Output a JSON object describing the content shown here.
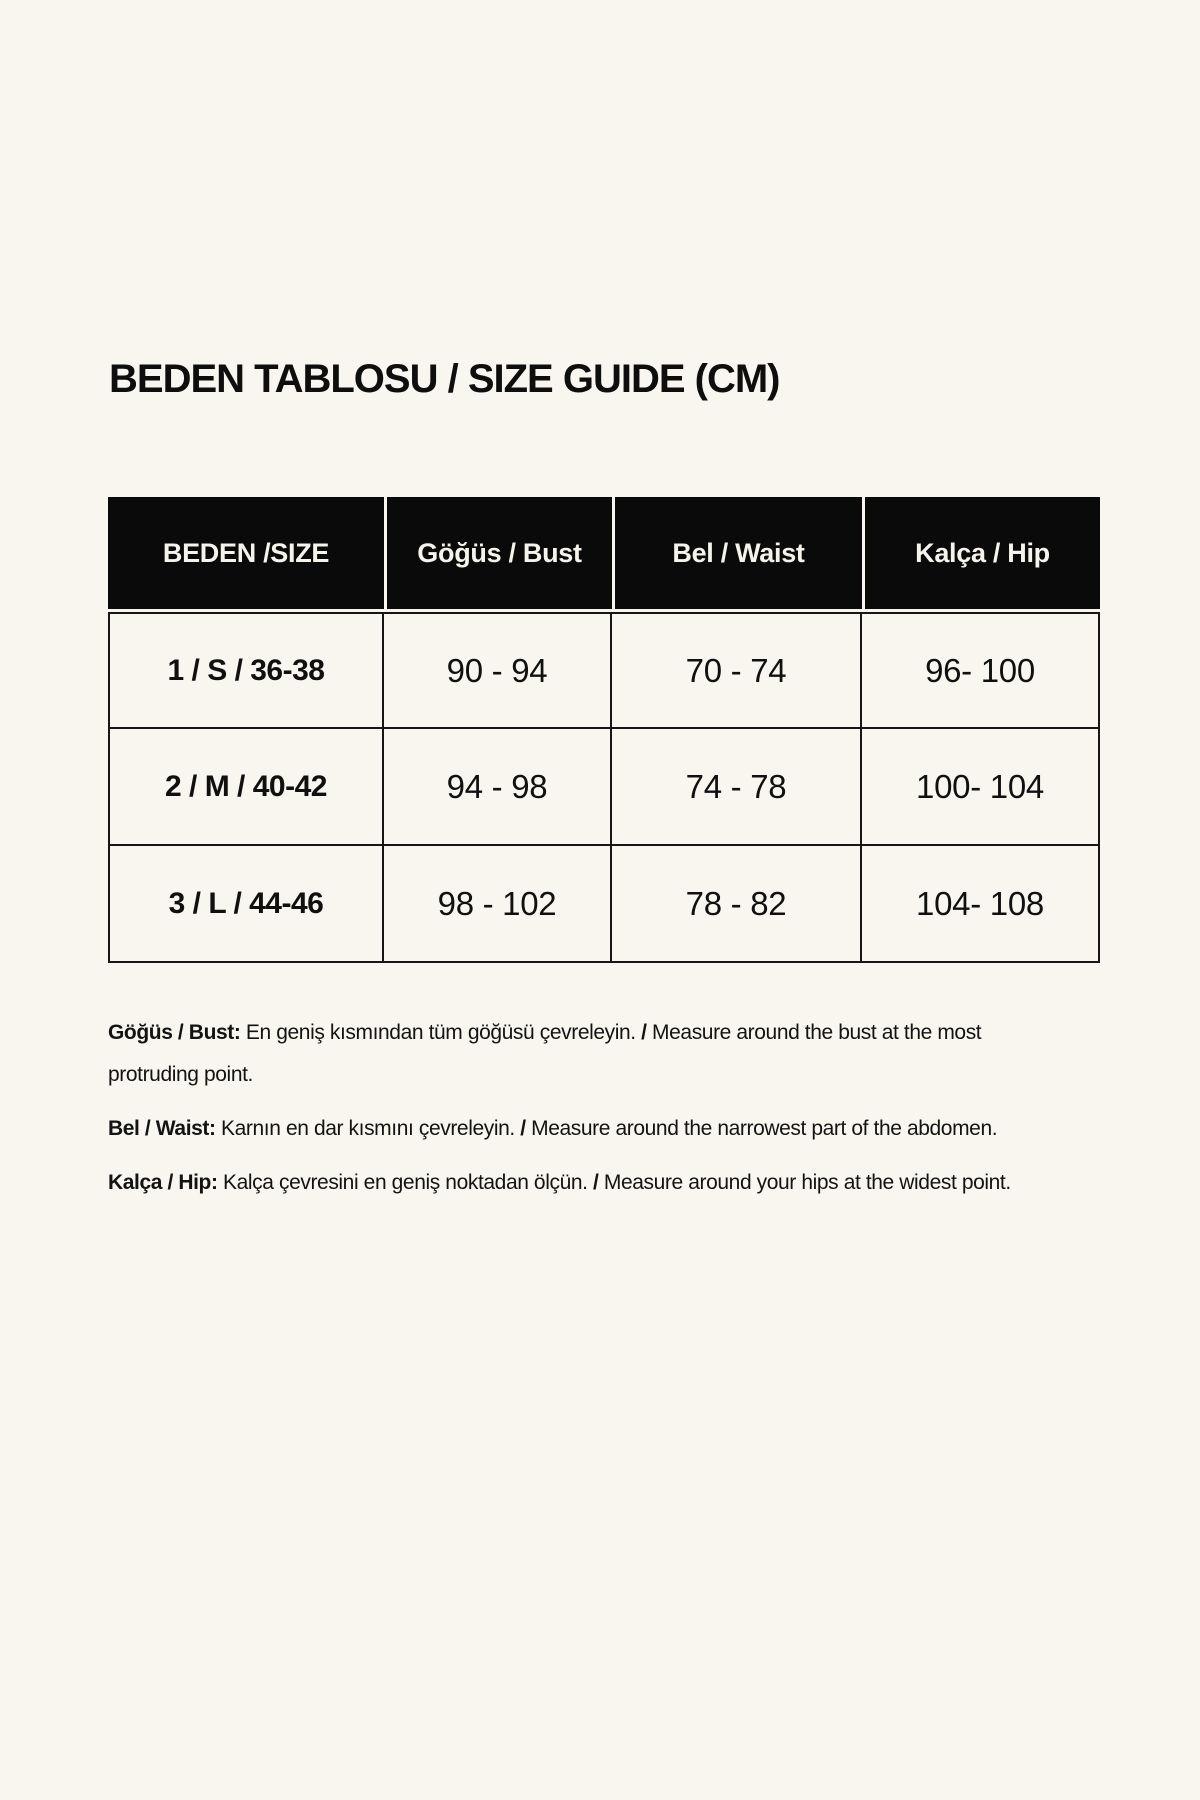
{
  "page": {
    "background": "#F8F6EF",
    "title": "BEDEN TABLOSU / SIZE GUIDE (CM)"
  },
  "table": {
    "header_bg": "#0A0A0A",
    "header_text_color": "#F6F3EB",
    "border_color": "#161616",
    "headers": [
      "BEDEN /SIZE",
      "Göğüs / Bust",
      "Bel / Waist",
      "Kalça / Hip"
    ],
    "rows": [
      {
        "size": "1 / S / 36-38",
        "bust": "90 - 94",
        "waist": "70 - 74",
        "hip": "96- 100"
      },
      {
        "size": "2 / M / 40-42",
        "bust": "94 - 98",
        "waist": "74 - 78",
        "hip": "100- 104"
      },
      {
        "size": "3 / L / 44-46",
        "bust": "98 - 102",
        "waist": "78 - 82",
        "hip": "104- 108"
      }
    ]
  },
  "notes": [
    {
      "label": "Göğüs / Bust:",
      "turkish": "En geniş kısmından tüm göğüsü çevreleyin.",
      "separator": "/",
      "english": "Measure around the bust at the most protruding point."
    },
    {
      "label": "Bel / Waist:",
      "turkish": "Karnın en dar kısmını çevreleyin.",
      "separator": "/",
      "english": "Measure around the narrowest part of the abdomen."
    },
    {
      "label": "Kalça / Hip:",
      "turkish": "Kalça çevresini en geniş noktadan ölçün.",
      "separator": "/",
      "english": "Measure around your hips at the widest point."
    }
  ]
}
